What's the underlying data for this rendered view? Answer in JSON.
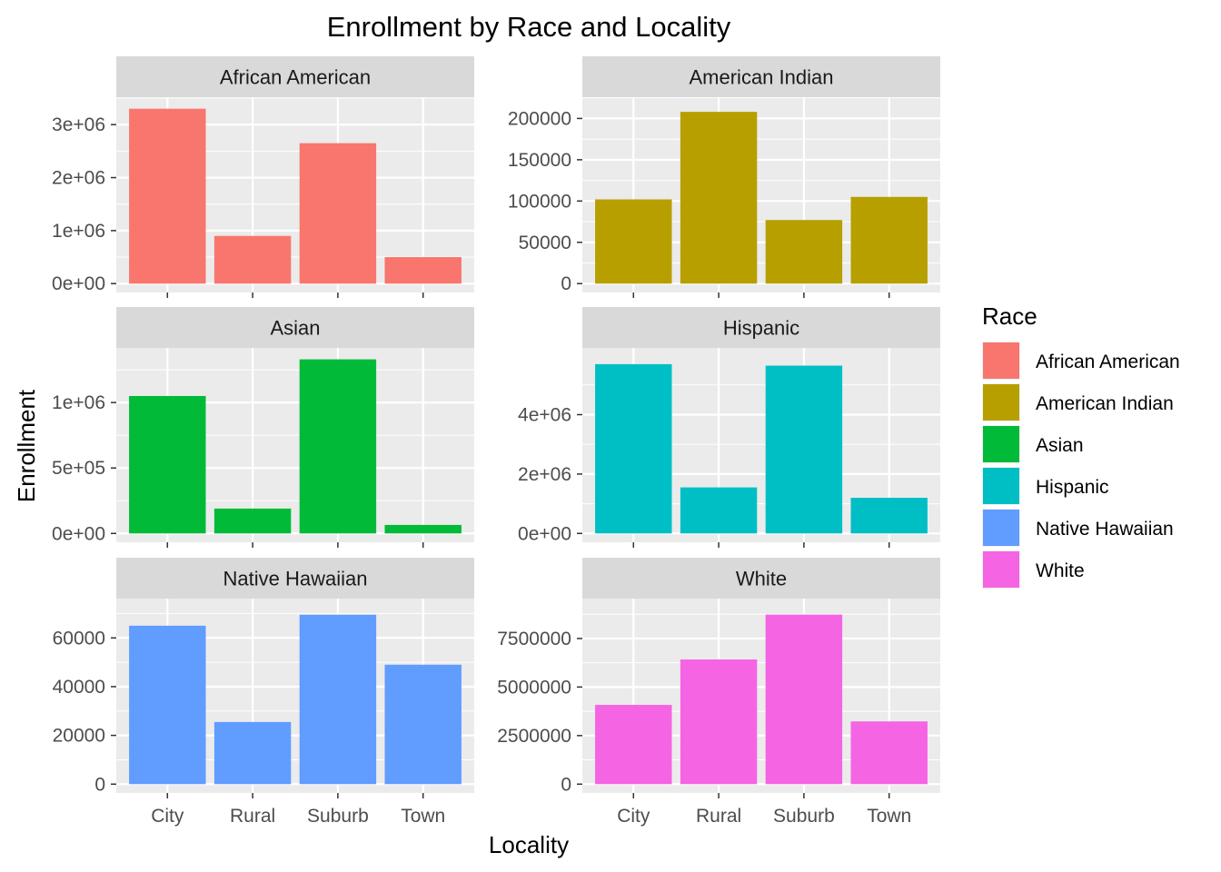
{
  "chart_data": {
    "type": "bar",
    "title": "Enrollment by Race and Locality",
    "xlabel": "Locality",
    "ylabel": "Enrollment",
    "categories": [
      "City",
      "Rural",
      "Suburb",
      "Town"
    ],
    "facet_scales": "free_y",
    "grid": true,
    "legend_position": "right",
    "legend": {
      "title": "Race",
      "entries": [
        "African American",
        "American Indian",
        "Asian",
        "Hispanic",
        "Native Hawaiian",
        "White"
      ]
    },
    "series": [
      {
        "name": "African American",
        "color": "#F8766D",
        "values": [
          3300000,
          900000,
          2650000,
          500000
        ],
        "ylim": [
          0,
          3350000
        ],
        "ticks": [
          0,
          1000000,
          2000000,
          3000000
        ],
        "tick_labels": [
          "0e+00",
          "1e+06",
          "2e+06",
          "3e+06"
        ]
      },
      {
        "name": "American Indian",
        "color": "#B79F00",
        "values": [
          102000,
          208000,
          77000,
          105000
        ],
        "ylim": [
          0,
          215000
        ],
        "ticks": [
          0,
          50000,
          100000,
          150000,
          200000
        ],
        "tick_labels": [
          "0",
          "50000",
          "100000",
          "150000",
          "200000"
        ]
      },
      {
        "name": "Asian",
        "color": "#00BA38",
        "values": [
          1050000,
          190000,
          1330000,
          65000
        ],
        "ylim": [
          0,
          1350000
        ],
        "ticks": [
          0,
          500000,
          1000000
        ],
        "tick_labels": [
          "0e+00",
          "5e+05",
          "1e+06"
        ]
      },
      {
        "name": "Hispanic",
        "color": "#00BFC4",
        "values": [
          5700000,
          1550000,
          5650000,
          1200000
        ],
        "ylim": [
          0,
          5950000
        ],
        "ticks": [
          0,
          2000000,
          4000000
        ],
        "tick_labels": [
          "0e+00",
          "2e+06",
          "4e+06"
        ]
      },
      {
        "name": "Native Hawaiian",
        "color": "#619CFF",
        "values": [
          65000,
          25500,
          69500,
          49000
        ],
        "ylim": [
          0,
          72500
        ],
        "ticks": [
          0,
          20000,
          40000,
          60000
        ],
        "tick_labels": [
          "0",
          "20000",
          "40000",
          "60000"
        ]
      },
      {
        "name": "White",
        "color": "#F564E3",
        "values": [
          4080000,
          6420000,
          8730000,
          3230000
        ],
        "ylim": [
          0,
          9100000
        ],
        "ticks": [
          0,
          2500000,
          5000000,
          7500000
        ],
        "tick_labels": [
          "0",
          "2500000",
          "5000000",
          "7500000"
        ]
      }
    ]
  }
}
